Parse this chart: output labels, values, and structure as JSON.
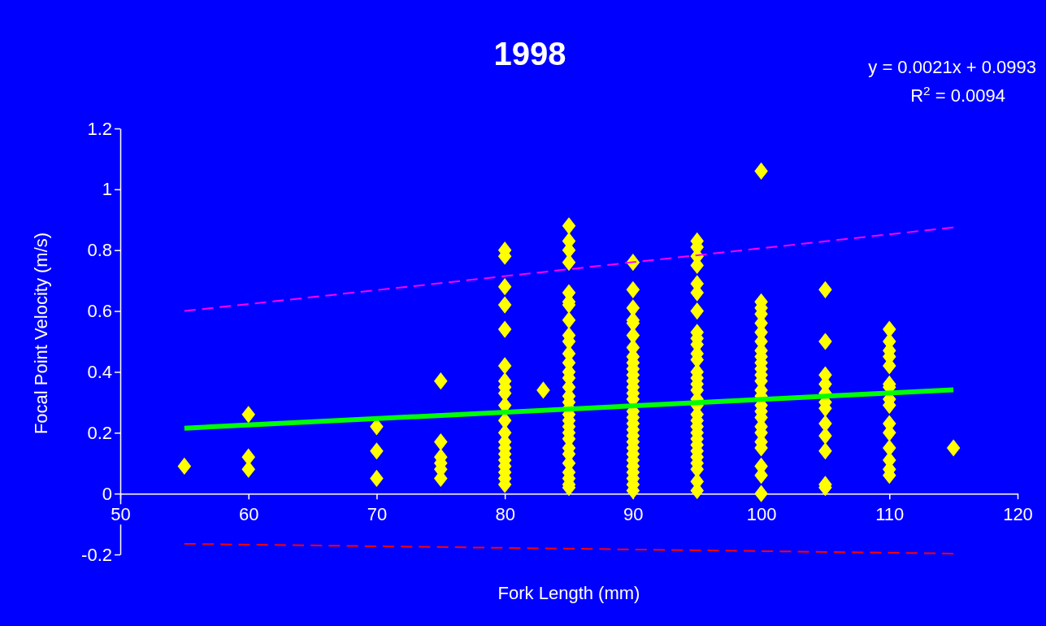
{
  "chart_data": {
    "type": "scatter",
    "title": "1998",
    "xlabel": "Fork Length (mm)",
    "ylabel": "Focal Point Velocity (m/s)",
    "xlim": [
      50,
      120
    ],
    "xticks": [
      50,
      60,
      70,
      80,
      90,
      100,
      110,
      120
    ],
    "ylim": [
      -0.2,
      1.2
    ],
    "yticks": [
      -0.2,
      0,
      0.2,
      0.4,
      0.6,
      0.8,
      1,
      1.2
    ],
    "grid": false,
    "annotations": [
      "y = 0.0021x + 0.0993",
      "R$^{2}$ = 0.0094"
    ],
    "series": [
      {
        "color": "#ffff00",
        "marker": "diamond",
        "x": [
          55,
          60,
          60,
          60,
          70,
          70,
          70,
          75,
          75,
          75,
          75,
          75,
          75,
          80,
          80,
          80,
          80,
          80,
          80,
          80,
          80,
          80,
          80,
          80,
          80,
          80,
          80,
          80,
          80,
          80,
          80,
          80,
          80,
          83,
          85,
          85,
          85,
          85,
          85,
          85,
          85,
          85,
          85,
          85,
          85,
          85,
          85,
          85,
          85,
          85,
          85,
          85,
          85,
          85,
          85,
          85,
          85,
          85,
          85,
          85,
          85,
          85,
          85,
          85,
          90,
          90,
          90,
          90,
          90,
          90,
          90,
          90,
          90,
          90,
          90,
          90,
          90,
          90,
          90,
          90,
          90,
          90,
          90,
          90,
          90,
          90,
          90,
          90,
          90,
          90,
          90,
          90,
          90,
          95,
          95,
          95,
          95,
          95,
          95,
          95,
          95,
          95,
          95,
          95,
          95,
          95,
          95,
          95,
          95,
          95,
          95,
          95,
          95,
          95,
          95,
          95,
          95,
          95,
          95,
          95,
          95,
          95,
          95,
          100,
          100,
          100,
          100,
          100,
          100,
          100,
          100,
          100,
          100,
          100,
          100,
          100,
          100,
          100,
          100,
          100,
          100,
          100,
          100,
          100,
          100,
          100,
          100,
          100,
          105,
          105,
          105,
          105,
          105,
          105,
          105,
          105,
          105,
          105,
          105,
          105,
          110,
          110,
          110,
          110,
          110,
          110,
          110,
          110,
          110,
          110,
          110,
          110,
          110,
          110,
          110,
          115
        ],
        "values": [
          0.09,
          0.26,
          0.12,
          0.08,
          0.22,
          0.14,
          0.05,
          0.37,
          0.17,
          0.12,
          0.1,
          0.08,
          0.05,
          0.8,
          0.78,
          0.68,
          0.62,
          0.54,
          0.42,
          0.37,
          0.35,
          0.33,
          0.29,
          0.24,
          0.2,
          0.17,
          0.15,
          0.13,
          0.11,
          0.09,
          0.07,
          0.05,
          0.03,
          0.34,
          0.88,
          0.83,
          0.8,
          0.76,
          0.66,
          0.63,
          0.62,
          0.57,
          0.52,
          0.5,
          0.46,
          0.43,
          0.4,
          0.38,
          0.35,
          0.32,
          0.3,
          0.28,
          0.26,
          0.24,
          0.22,
          0.2,
          0.18,
          0.15,
          0.13,
          0.1,
          0.07,
          0.05,
          0.03,
          0.02,
          0.76,
          0.67,
          0.61,
          0.57,
          0.56,
          0.52,
          0.48,
          0.45,
          0.43,
          0.41,
          0.39,
          0.37,
          0.35,
          0.33,
          0.31,
          0.27,
          0.25,
          0.23,
          0.21,
          0.19,
          0.17,
          0.15,
          0.13,
          0.11,
          0.09,
          0.07,
          0.05,
          0.03,
          0.01,
          0.83,
          0.81,
          0.78,
          0.75,
          0.69,
          0.66,
          0.6,
          0.53,
          0.51,
          0.49,
          0.46,
          0.44,
          0.4,
          0.38,
          0.36,
          0.34,
          0.31,
          0.29,
          0.26,
          0.24,
          0.22,
          0.2,
          0.18,
          0.16,
          0.14,
          0.12,
          0.1,
          0.08,
          0.04,
          0.01,
          1.06,
          0.63,
          0.61,
          0.59,
          0.56,
          0.53,
          0.5,
          0.47,
          0.45,
          0.43,
          0.41,
          0.39,
          0.37,
          0.34,
          0.32,
          0.29,
          0.27,
          0.25,
          0.22,
          0.2,
          0.17,
          0.15,
          0.09,
          0.06,
          0,
          0.67,
          0.5,
          0.39,
          0.36,
          0.33,
          0.3,
          0.28,
          0.23,
          0.19,
          0.14,
          0.03,
          0.02,
          0.54,
          0.5,
          0.47,
          0.45,
          0.42,
          0.36,
          0.35,
          0.31,
          0.29,
          0.23,
          0.2,
          0.15,
          0.11,
          0.08,
          0.06,
          0.15
        ]
      },
      {
        "type": "line",
        "color": "#00ff00",
        "line_style": "solid",
        "marker": "none",
        "x": [
          55,
          115
        ],
        "values": [
          0.215,
          0.341
        ]
      },
      {
        "type": "line",
        "color": "#ff00ff",
        "line_style": "dashed",
        "marker": "none",
        "x": [
          55,
          115
        ],
        "values": [
          0.6,
          0.875
        ]
      },
      {
        "type": "line",
        "color": "#ff0000",
        "line_style": "dashed",
        "marker": "none",
        "x": [
          55,
          115
        ],
        "values": [
          -0.165,
          -0.197
        ]
      }
    ]
  }
}
